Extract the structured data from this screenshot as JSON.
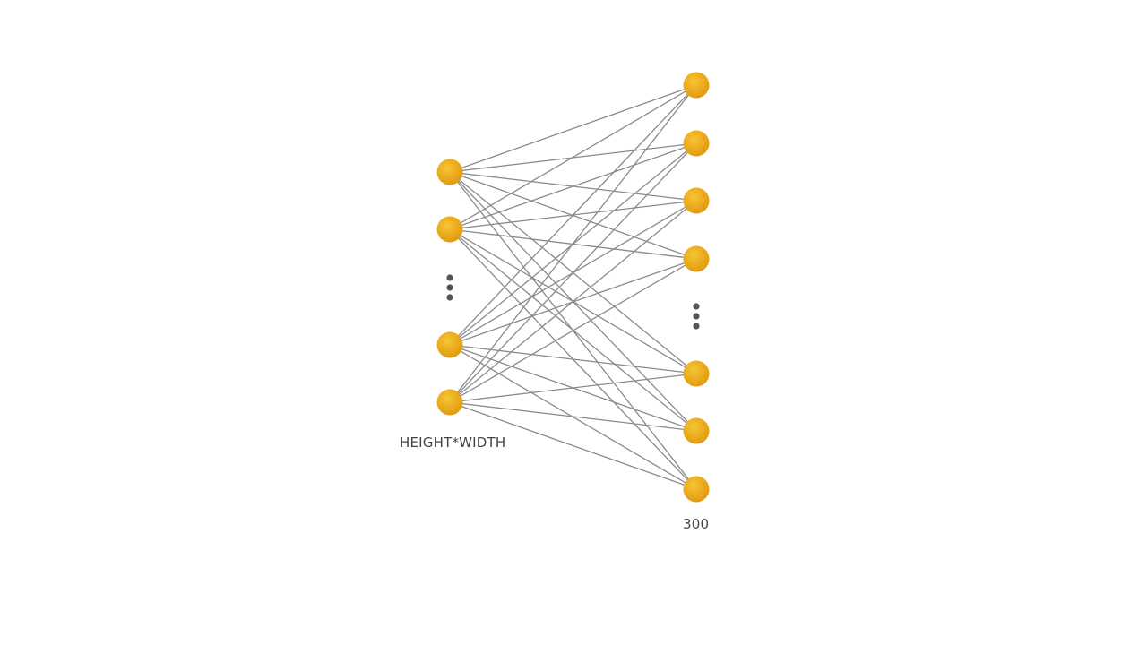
{
  "diagram": {
    "type": "fully-connected-layer",
    "input_layer": {
      "label": "HEIGHT*WIDTH",
      "visible_nodes_before_ellipsis": 2,
      "visible_nodes_after_ellipsis": 2
    },
    "output_layer": {
      "label": "300",
      "visible_nodes_before_ellipsis": 4,
      "visible_nodes_after_ellipsis": 3
    },
    "colors": {
      "node_light": "#f7c531",
      "node_dark": "#e29a12",
      "edge": "#8a8a8a",
      "ellipsis": "#555555",
      "label": "#444444"
    }
  }
}
